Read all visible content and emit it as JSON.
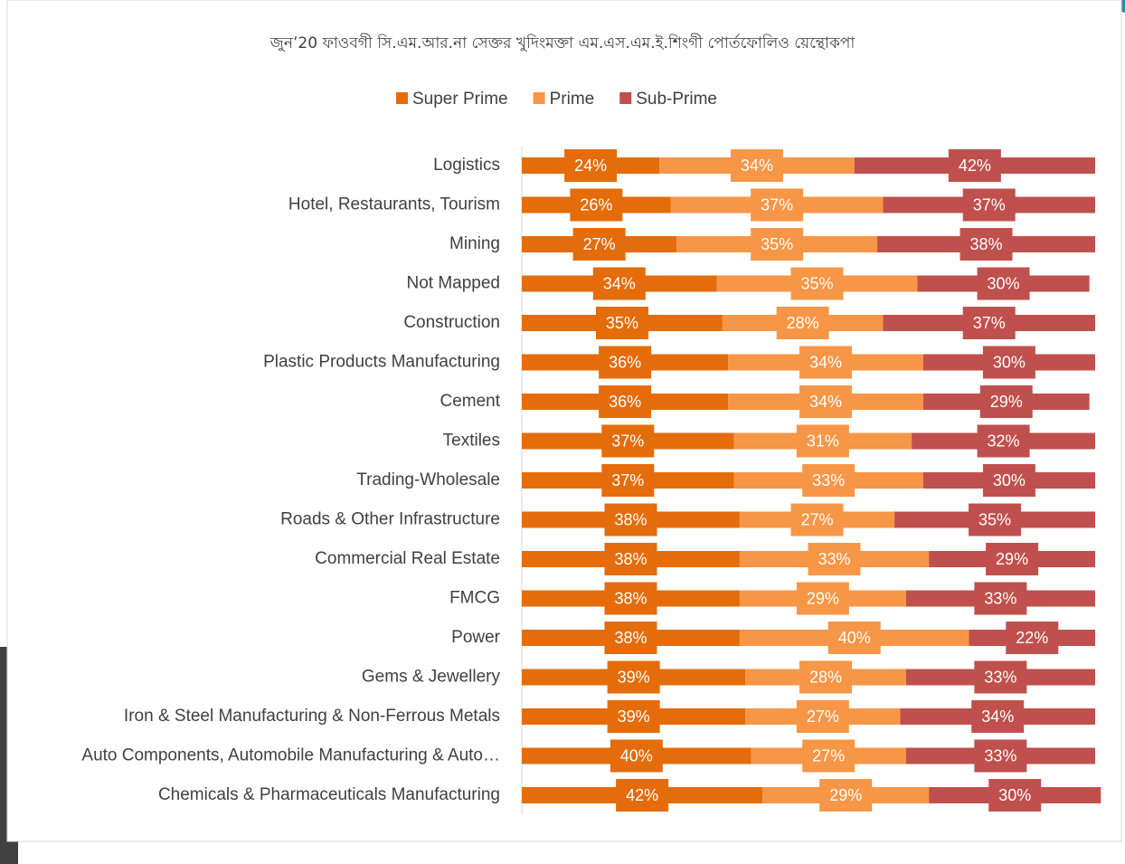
{
  "chart_data": {
    "type": "stacked-bar-100",
    "title": "জুন’20 ফাওবগী সি.এম.আর.না সেক্তর খুদিংমক্তা এম.এস.এম.ই.শিংগী পোর্তফোলিও য়েন্থোকপা",
    "categories": [
      "Logistics",
      "Hotel, Restaurants, Tourism",
      "Mining",
      "Not Mapped",
      "Construction",
      "Plastic Products Manufacturing",
      "Cement",
      "Textiles",
      "Trading-Wholesale",
      "Roads & Other Infrastructure",
      "Commercial Real Estate",
      "FMCG",
      "Power",
      "Gems & Jewellery",
      "Iron & Steel Manufacturing & Non-Ferrous Metals",
      "Auto Components, Automobile Manufacturing & Auto…",
      "Chemicals & Pharmaceuticals Manufacturing"
    ],
    "series": [
      {
        "name": "Super Prime",
        "color": "#e46c0a",
        "values": [
          24,
          26,
          27,
          34,
          35,
          36,
          36,
          37,
          37,
          38,
          38,
          38,
          38,
          39,
          39,
          40,
          42
        ],
        "value_labels": [
          "24%",
          "26%",
          "27%",
          "34%",
          "35%",
          "36%",
          "36%",
          "37%",
          "37%",
          "38%",
          "38%",
          "38%",
          "38%",
          "39%",
          "39%",
          "40%",
          "42%"
        ]
      },
      {
        "name": "Prime",
        "color": "#f79646",
        "values": [
          34,
          37,
          35,
          35,
          28,
          34,
          34,
          31,
          33,
          27,
          33,
          29,
          40,
          28,
          27,
          27,
          29
        ],
        "value_labels": [
          "34%",
          "37%",
          "35%",
          "35%",
          "28%",
          "34%",
          "34%",
          "31%",
          "33%",
          "27%",
          "33%",
          "29%",
          "40%",
          "28%",
          "27%",
          "27%",
          "29%"
        ]
      },
      {
        "name": "Sub-Prime",
        "color": "#c0504d",
        "values": [
          42,
          37,
          38,
          30,
          37,
          30,
          29,
          32,
          30,
          35,
          29,
          33,
          22,
          33,
          34,
          33,
          30
        ],
        "value_labels": [
          "42%",
          "37%",
          "38%",
          "30%",
          "37%",
          "30%",
          "29%",
          "32%",
          "30%",
          "35%",
          "29%",
          "33%",
          "22%",
          "33%",
          "34%",
          "33%",
          "30%"
        ]
      }
    ],
    "xlim": [
      0,
      100
    ],
    "legend": "top"
  }
}
